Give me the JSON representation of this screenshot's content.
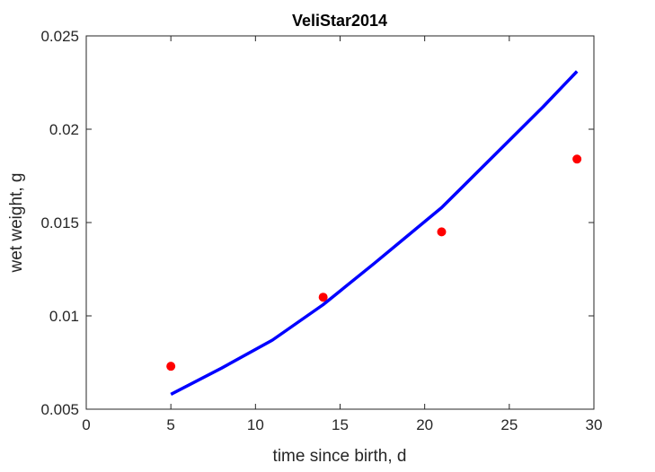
{
  "chart_data": {
    "type": "scatter",
    "title": "VeliStar2014",
    "xlabel": "time since birth, d",
    "ylabel": "wet weight, g",
    "xlim": [
      0,
      30
    ],
    "ylim": [
      0.005,
      0.025
    ],
    "xticks": [
      0,
      5,
      10,
      15,
      20,
      25,
      30
    ],
    "xtick_labels": [
      "0",
      "5",
      "10",
      "15",
      "20",
      "25",
      "30"
    ],
    "yticks": [
      0.005,
      0.01,
      0.015,
      0.02,
      0.025
    ],
    "ytick_labels": [
      "0.005",
      "0.01",
      "0.015",
      "0.02",
      "0.025"
    ],
    "grid": false,
    "legend": "none",
    "series": [
      {
        "kind": "points",
        "color": "#ff0000",
        "x": [
          5,
          14,
          21,
          29
        ],
        "y": [
          0.0073,
          0.011,
          0.0145,
          0.0184
        ]
      },
      {
        "kind": "line",
        "color": "#0000ff",
        "x": [
          5,
          8,
          11,
          14,
          17,
          19,
          21,
          23,
          25,
          27,
          29
        ],
        "y": [
          0.0058,
          0.0072,
          0.0087,
          0.0106,
          0.0128,
          0.0143,
          0.0158,
          0.0176,
          0.0194,
          0.0212,
          0.0231
        ]
      }
    ]
  }
}
